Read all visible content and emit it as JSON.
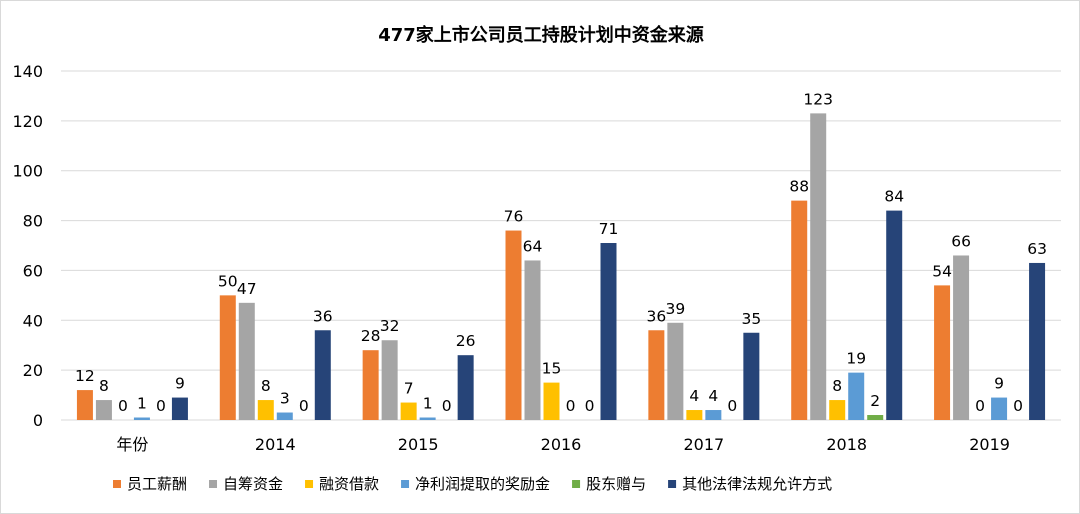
{
  "chart_data": {
    "type": "bar",
    "title": "477家上市公司员工持股计划中资金来源",
    "xlabel": "",
    "ylabel": "",
    "ylim": [
      0,
      140
    ],
    "yticks": [
      0,
      20,
      40,
      60,
      80,
      100,
      120,
      140
    ],
    "grid": true,
    "legend_position": "bottom",
    "categories": [
      "年份",
      "2014",
      "2015",
      "2016",
      "2017",
      "2018",
      "2019"
    ],
    "series": [
      {
        "name": "员工薪酬",
        "color": "#ED7D31",
        "values": [
          12,
          50,
          28,
          76,
          36,
          88,
          54
        ]
      },
      {
        "name": "自筹资金",
        "color": "#A5A5A5",
        "values": [
          8,
          47,
          32,
          64,
          39,
          123,
          66
        ]
      },
      {
        "name": "融资借款",
        "color": "#FFC000",
        "values": [
          0,
          8,
          7,
          15,
          4,
          8,
          0
        ]
      },
      {
        "name": "净利润提取的奖励金",
        "color": "#5B9BD5",
        "values": [
          1,
          3,
          1,
          0,
          4,
          19,
          9
        ]
      },
      {
        "name": "股东赠与",
        "color": "#70AD47",
        "values": [
          0,
          0,
          0,
          0,
          0,
          2,
          0
        ]
      },
      {
        "name": "其他法律法规允许方式",
        "color": "#264478",
        "values": [
          9,
          36,
          26,
          71,
          35,
          84,
          63
        ]
      }
    ]
  }
}
